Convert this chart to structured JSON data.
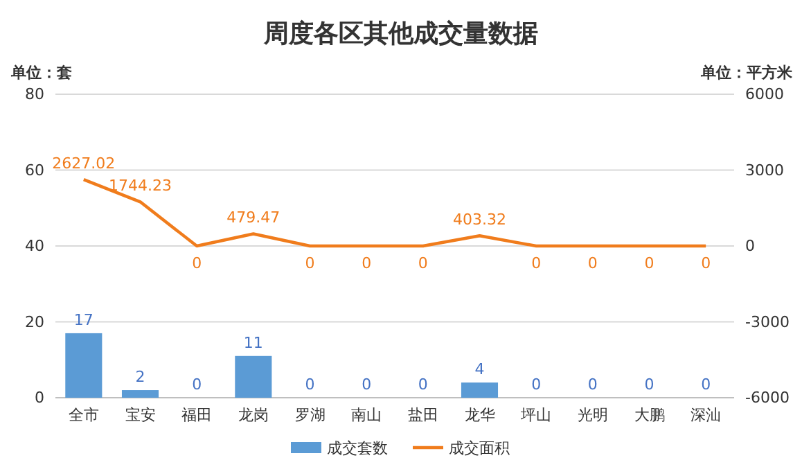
{
  "chart_data": {
    "type": "bar",
    "title": "周度各区其他成交量数据",
    "ylabel": "单位：套",
    "y2label": "单位：平方米",
    "categories": [
      "全市",
      "宝安",
      "福田",
      "龙岗",
      "罗湖",
      "南山",
      "盐田",
      "龙华",
      "坪山",
      "光明",
      "大鹏",
      "深汕"
    ],
    "series": [
      {
        "name": "成交套数",
        "color": "#5b9bd5",
        "values": [
          17,
          2,
          0,
          11,
          0,
          0,
          0,
          4,
          0,
          0,
          0,
          0
        ]
      },
      {
        "name": "成交面积",
        "type": "line",
        "axis": "y2",
        "color": "#f07c1c",
        "values": [
          2627.02,
          1744.23,
          0,
          479.47,
          0,
          0,
          0,
          403.32,
          0,
          0,
          0,
          0
        ]
      }
    ],
    "ylim": [
      0,
      80
    ],
    "yticks": [
      0,
      20,
      40,
      60,
      80
    ],
    "y2lim": [
      -6000,
      6000
    ],
    "y2ticks": [
      -6000,
      -3000,
      0,
      3000,
      6000
    ],
    "grid": "y",
    "legend": "bottom",
    "data_labels": true,
    "marker": "none"
  }
}
